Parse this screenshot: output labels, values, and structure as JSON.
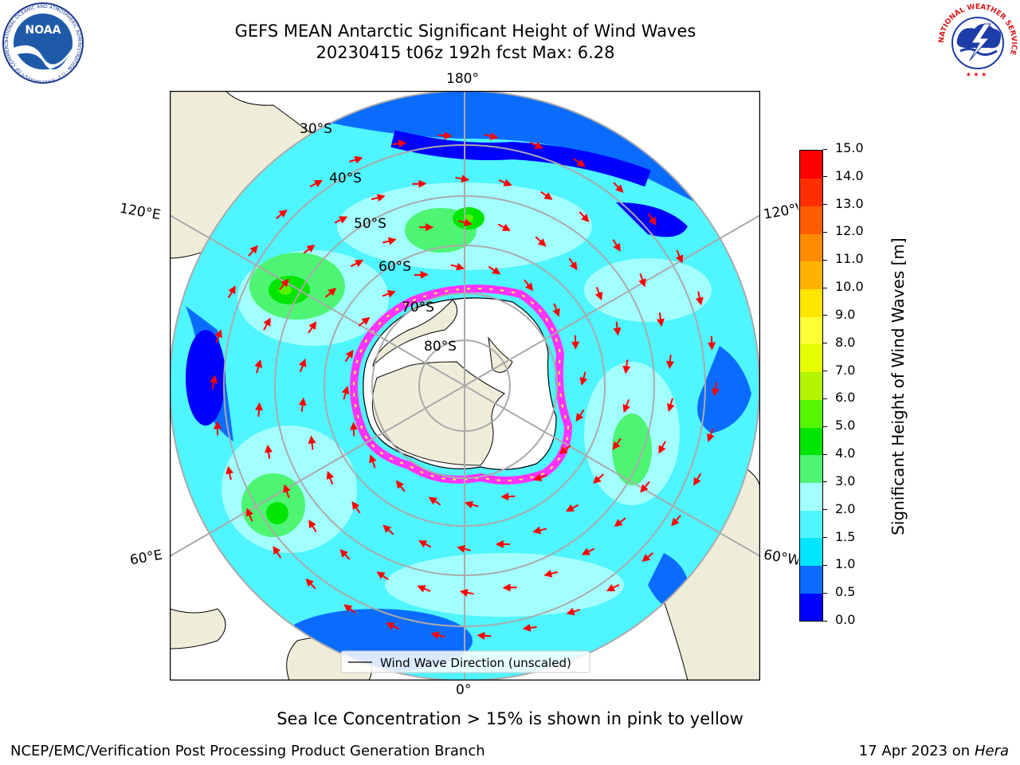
{
  "title": {
    "line1": "GEFS MEAN Antarctic Significant Height of Wind Waves",
    "line2": "20230415 t06z 192h fcst   Max: 6.28"
  },
  "logos": {
    "noaa": {
      "text": "NOAA",
      "ring_text": "NATIONAL OCEANIC AND ATMOSPHERIC ADMINISTRATION · U.S. DEPARTMENT OF COMMERCE"
    },
    "nws": {
      "ring_text": "NATIONAL WEATHER SERVICE"
    }
  },
  "map": {
    "projection": "south polar stereographic",
    "longitude_labels": {
      "top": "180°",
      "bottom": "0°",
      "upper_left": "120°E",
      "upper_right": "120°W",
      "lower_left": "60°E",
      "lower_right": "60°W"
    },
    "latitude_labels": [
      "30°S",
      "40°S",
      "50°S",
      "60°S",
      "70°S",
      "80°S"
    ],
    "legend": "Wind Wave Direction (unscaled)",
    "arrow_color": "#ff0000",
    "sea_ice_colors": [
      "#ff33ff",
      "#ffff33"
    ]
  },
  "colorbar": {
    "label": "Significant Height of Wind Waves [m]",
    "ticks": [
      "0.0",
      "0.5",
      "1.0",
      "1.5",
      "2.0",
      "3.0",
      "4.0",
      "5.0",
      "6.0",
      "7.0",
      "8.0",
      "9.0",
      "10.0",
      "11.0",
      "12.0",
      "13.0",
      "14.0",
      "15.0"
    ],
    "colors": [
      "#0000ff",
      "#0a6cff",
      "#00e6ff",
      "#4ff5ff",
      "#a3ffff",
      "#4df573",
      "#00e600",
      "#55f700",
      "#b3f500",
      "#e6ff00",
      "#ffff33",
      "#ffe600",
      "#ffb300",
      "#ff8c00",
      "#ff5e00",
      "#ff2e00",
      "#ff0000"
    ]
  },
  "subnote": "Sea Ice Concentration > 15% is shown in pink to yellow",
  "footer": {
    "left": "NCEP/EMC/Verification Post Processing Product Generation Branch",
    "right_date": "17 Apr 2023 on ",
    "right_host": "Hera"
  }
}
